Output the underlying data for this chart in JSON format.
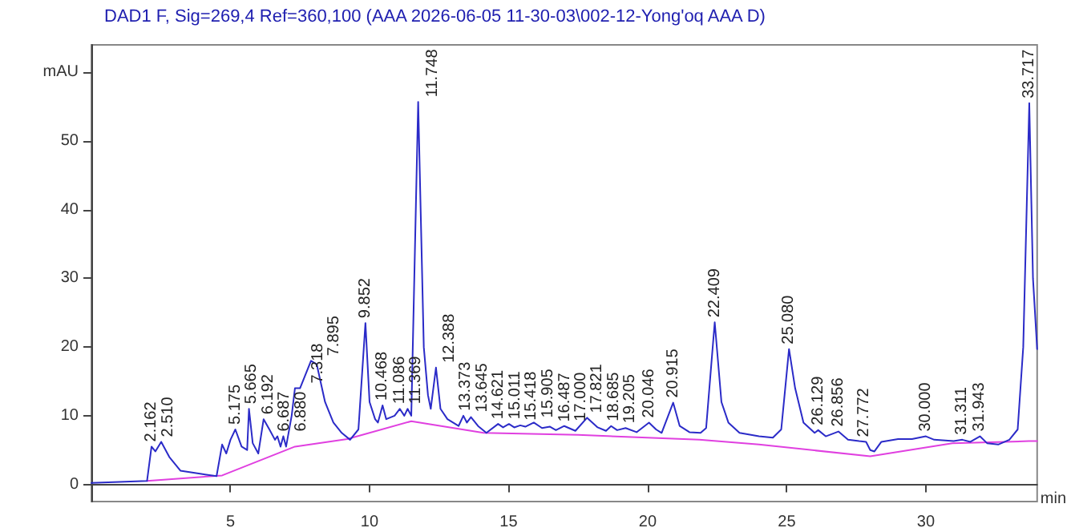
{
  "chart_data": {
    "type": "line",
    "title": "DAD1 F, Sig=269,4 Ref=360,100 (AAA 2026-06-05 11-30-03\\002-12-Yong'oq AAA D)",
    "xlabel": "min",
    "xlim": [
      0,
      34
    ],
    "xticks": [
      5,
      10,
      15,
      20,
      25,
      30
    ],
    "ylim": [
      -2.5,
      64
    ],
    "yticks": [
      0,
      10,
      20,
      30,
      40,
      50,
      {
        "value": 60,
        "label": "mAU"
      }
    ],
    "marker": "none",
    "line_style": "solid",
    "series": [
      {
        "color": "#2b2bc8",
        "x": [
          0,
          2.0,
          2.162,
          2.3,
          2.51,
          2.8,
          3.2,
          4.0,
          4.5,
          4.7,
          4.85,
          5.0,
          5.175,
          5.4,
          5.6,
          5.665,
          5.8,
          6.0,
          6.192,
          6.4,
          6.6,
          6.687,
          6.8,
          6.9,
          7.0,
          7.2,
          7.318,
          7.5,
          7.895,
          8.1,
          8.4,
          8.7,
          9.0,
          9.3,
          9.6,
          9.852,
          10.0,
          10.2,
          10.3,
          10.468,
          10.6,
          10.9,
          11.086,
          11.25,
          11.369,
          11.5,
          11.748,
          11.95,
          12.1,
          12.2,
          12.388,
          12.55,
          12.8,
          13.0,
          13.2,
          13.373,
          13.5,
          13.645,
          13.9,
          14.2,
          14.621,
          14.8,
          15.011,
          15.2,
          15.418,
          15.6,
          15.905,
          16.2,
          16.487,
          16.7,
          17.0,
          17.4,
          17.821,
          18.2,
          18.5,
          18.685,
          18.9,
          19.205,
          19.6,
          20.046,
          20.3,
          20.5,
          20.915,
          21.15,
          21.5,
          21.9,
          22.1,
          22.409,
          22.65,
          22.9,
          23.3,
          24.0,
          24.5,
          24.8,
          25.08,
          25.3,
          25.6,
          26.0,
          26.129,
          26.4,
          26.856,
          27.2,
          27.6,
          27.85,
          28.0,
          28.15,
          28.4,
          29.0,
          29.5,
          30.0,
          30.3,
          31.0,
          31.311,
          31.6,
          31.943,
          32.2,
          32.6,
          33.0,
          33.3,
          33.5,
          33.717,
          33.85,
          34.0
        ],
        "values": [
          0.2,
          0.5,
          5.5,
          4.8,
          6.2,
          4,
          2,
          1.5,
          1.2,
          5.8,
          4.5,
          6.5,
          8,
          5.5,
          5,
          11,
          6,
          4.5,
          9.5,
          8,
          6.5,
          7,
          5.5,
          7,
          5.5,
          10,
          14,
          14,
          18,
          17.5,
          12,
          9,
          7.5,
          6.5,
          8,
          23.5,
          12,
          9.5,
          9,
          11.5,
          9.5,
          10,
          11,
          10,
          11,
          10,
          55.7,
          20,
          13,
          11,
          17,
          11,
          9.5,
          9,
          8.5,
          10,
          9,
          9.8,
          8.5,
          7.5,
          8.8,
          8.3,
          8.8,
          8.3,
          8.6,
          8.4,
          9,
          8.2,
          8.4,
          7.9,
          8.5,
          7.8,
          9.7,
          8.3,
          7.8,
          8.5,
          7.9,
          8.2,
          7.6,
          9,
          8,
          7.5,
          11.9,
          8.5,
          7.6,
          7.5,
          8.2,
          23.6,
          12,
          9,
          7.5,
          7,
          6.8,
          8,
          19.7,
          14,
          9,
          7.5,
          7.9,
          7,
          7.7,
          6.5,
          6.3,
          6.2,
          5,
          4.8,
          6.2,
          6.6,
          6.6,
          7,
          6.5,
          6.3,
          6.5,
          6.2,
          7,
          6,
          5.8,
          6.5,
          8,
          20,
          55.5,
          30,
          19.7
        ]
      },
      {
        "color": "#e040e0",
        "x": [
          2.0,
          4.7,
          7.318,
          9.2,
          11.5,
          14.1,
          17.5,
          21.85,
          24.0,
          28.0,
          30.95,
          33.7,
          34.0
        ],
        "values": [
          0.5,
          1.3,
          5.5,
          6.6,
          9.2,
          7.5,
          7.2,
          6.5,
          5.8,
          4.1,
          6.0,
          6.3,
          6.3
        ]
      }
    ],
    "annotations": [
      {
        "text": "2.162",
        "x": 2.162,
        "y": 5.5
      },
      {
        "text": "2.510",
        "x": 2.51,
        "y": 6.2
      },
      {
        "text": "5.175",
        "x": 5.175,
        "y": 8
      },
      {
        "text": "5.665",
        "x": 5.665,
        "y": 11
      },
      {
        "text": "6.192",
        "x": 6.192,
        "y": 9.5
      },
      {
        "text": "6.687",
        "x": 6.687,
        "y": 7
      },
      {
        "text": "6.880",
        "x": 6.9,
        "y": 7
      },
      {
        "text": "7.318",
        "x": 7.318,
        "y": 14
      },
      {
        "text": "7.895",
        "x": 7.895,
        "y": 18
      },
      {
        "text": "9.852",
        "x": 9.852,
        "y": 23.5
      },
      {
        "text": "10.468",
        "x": 10.468,
        "y": 11.5
      },
      {
        "text": "11.086",
        "x": 11.086,
        "y": 11
      },
      {
        "text": "11.369",
        "x": 11.369,
        "y": 11
      },
      {
        "text": "11.748",
        "x": 11.748,
        "y": 55.7
      },
      {
        "text": "12.388",
        "x": 12.388,
        "y": 17
      },
      {
        "text": "13.373",
        "x": 13.373,
        "y": 10
      },
      {
        "text": "13.645",
        "x": 13.645,
        "y": 9.8
      },
      {
        "text": "14.621",
        "x": 14.621,
        "y": 8.8
      },
      {
        "text": "15.011",
        "x": 15.011,
        "y": 8.8
      },
      {
        "text": "15.418",
        "x": 15.418,
        "y": 8.6
      },
      {
        "text": "15.905",
        "x": 15.905,
        "y": 9
      },
      {
        "text": "16.487",
        "x": 16.487,
        "y": 8.4
      },
      {
        "text": "17.000",
        "x": 17.0,
        "y": 8.5
      },
      {
        "text": "17.821",
        "x": 17.821,
        "y": 9.7
      },
      {
        "text": "18.685",
        "x": 18.685,
        "y": 8.5
      },
      {
        "text": "19.205",
        "x": 19.205,
        "y": 8.2
      },
      {
        "text": "20.046",
        "x": 20.046,
        "y": 9
      },
      {
        "text": "20.915",
        "x": 20.915,
        "y": 11.9
      },
      {
        "text": "22.409",
        "x": 22.409,
        "y": 23.6
      },
      {
        "text": "25.080",
        "x": 25.08,
        "y": 19.7
      },
      {
        "text": "26.129",
        "x": 26.129,
        "y": 7.9
      },
      {
        "text": "26.856",
        "x": 26.856,
        "y": 7.7
      },
      {
        "text": "27.772",
        "x": 27.772,
        "y": 6.2
      },
      {
        "text": "30.000",
        "x": 30.0,
        "y": 7
      },
      {
        "text": "31.311",
        "x": 31.311,
        "y": 6.5
      },
      {
        "text": "31.943",
        "x": 31.943,
        "y": 7
      },
      {
        "text": "33.717",
        "x": 33.717,
        "y": 55.5
      }
    ]
  }
}
